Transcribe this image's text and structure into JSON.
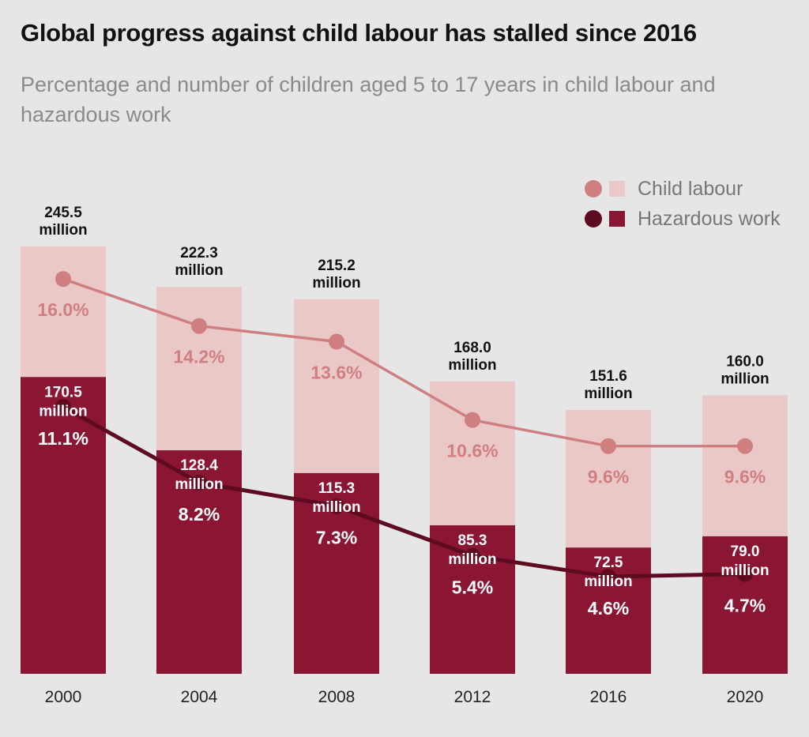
{
  "title": "Global progress against child labour has stalled since 2016",
  "subtitle": "Percentage and number of children aged 5 to 17 years in child labour and hazardous work",
  "legend": {
    "child_labour": "Child labour",
    "hazardous_work": "Hazardous work"
  },
  "colors": {
    "child_bar": "#ebc8c8",
    "child_line": "#cf7f80",
    "hazard_bar": "#8a1634",
    "hazard_line": "#5e0b22",
    "background": "#e6e6e6"
  },
  "chart_data": {
    "type": "bar",
    "categories": [
      "2000",
      "2004",
      "2008",
      "2012",
      "2016",
      "2020"
    ],
    "ylim": [
      0,
      245.5
    ],
    "series": [
      {
        "name": "Child labour",
        "values": [
          245.5,
          222.3,
          215.2,
          168.0,
          151.6,
          160.0
        ],
        "labels": [
          "245.5",
          "222.3",
          "215.2",
          "168.0",
          "151.6",
          "160.0"
        ],
        "unit": "million",
        "percent": [
          16.0,
          14.2,
          13.6,
          10.6,
          9.6,
          9.6
        ],
        "percent_labels": [
          "16.0%",
          "14.2%",
          "13.6%",
          "10.6%",
          "9.6%",
          "9.6%"
        ]
      },
      {
        "name": "Hazardous work",
        "values": [
          170.5,
          128.4,
          115.3,
          85.3,
          72.5,
          79.0
        ],
        "labels": [
          "170.5",
          "128.4",
          "115.3",
          "85.3",
          "72.5",
          "79.0"
        ],
        "unit": "million",
        "percent": [
          11.1,
          8.2,
          7.3,
          5.4,
          4.6,
          4.7
        ],
        "percent_labels": [
          "11.1%",
          "8.2%",
          "7.3%",
          "5.4%",
          "4.6%",
          "4.7%"
        ]
      }
    ]
  }
}
